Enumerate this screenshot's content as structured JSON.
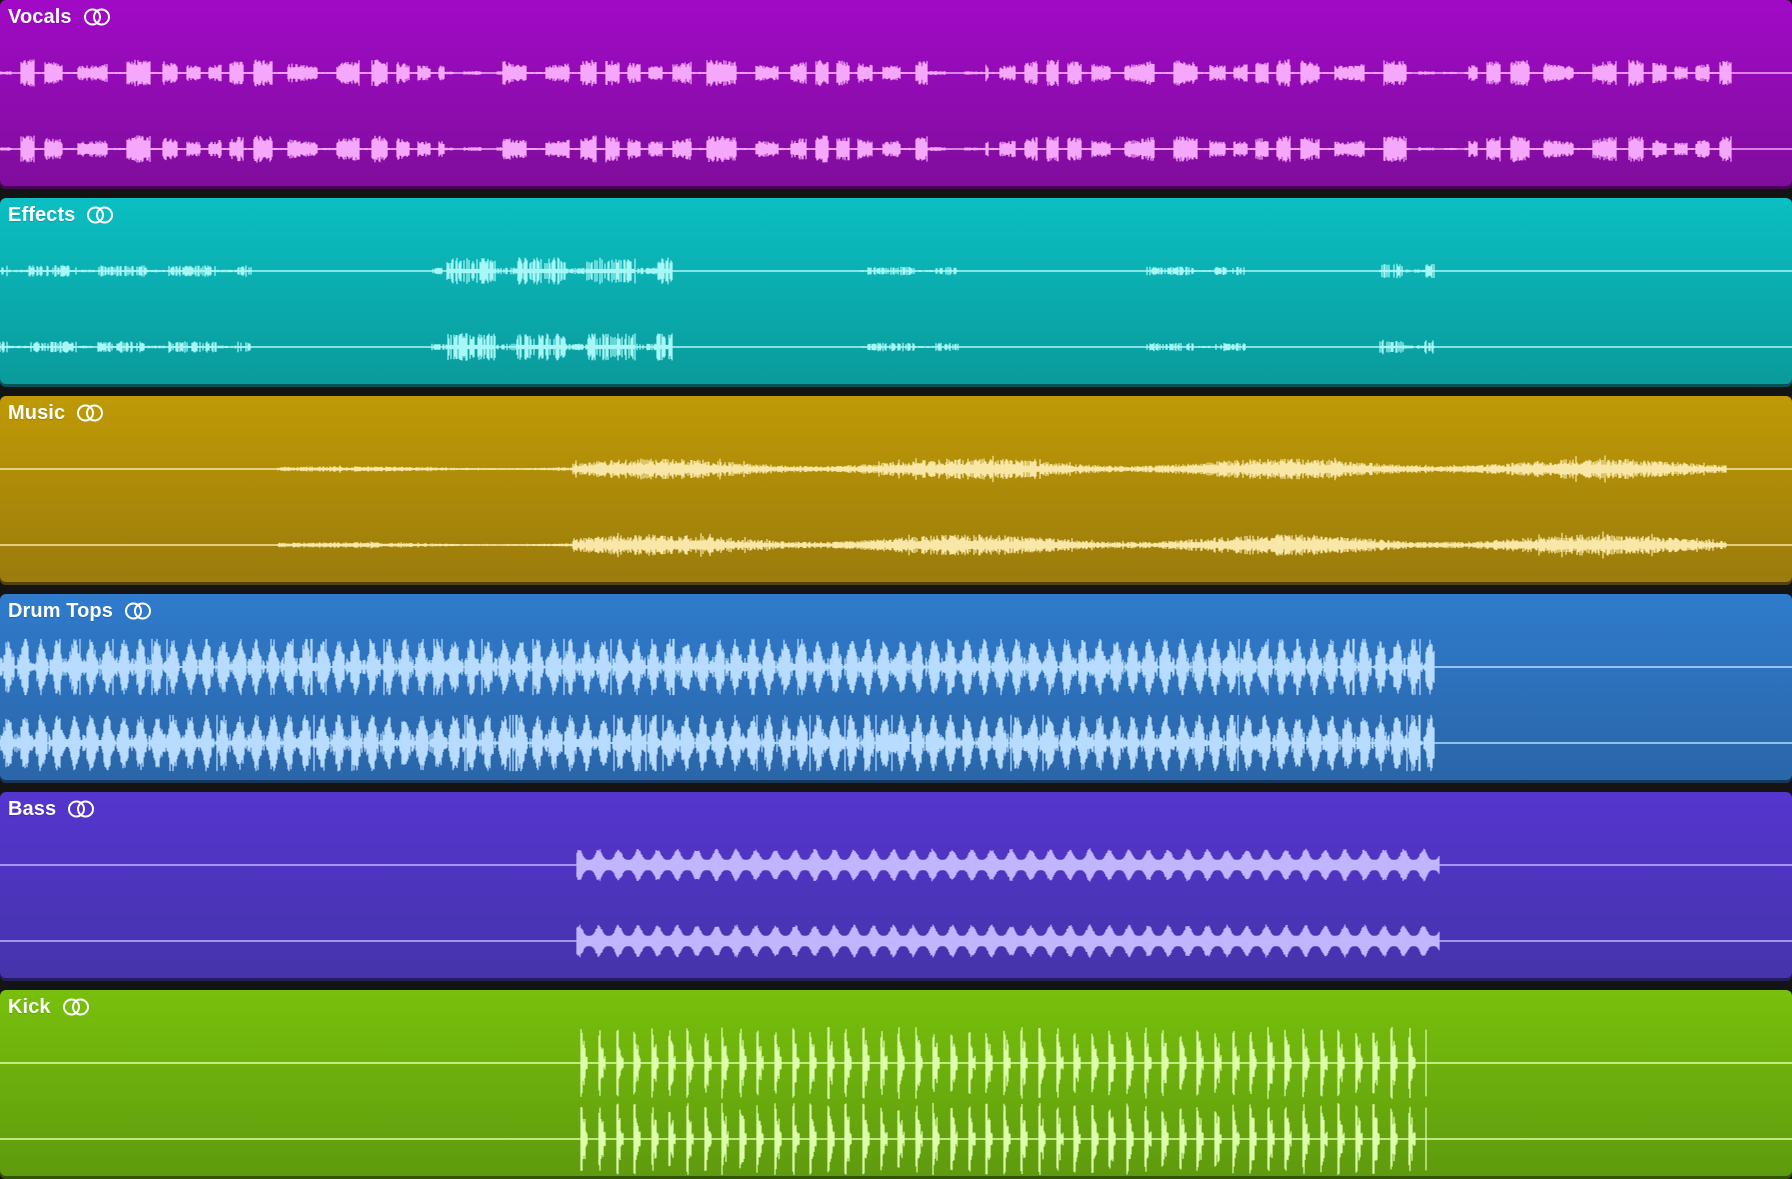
{
  "tracks": [
    {
      "name": "Vocals",
      "icon": "loop-icon",
      "colors": {
        "top": "#a10ac6",
        "bottom": "#7f0d9c",
        "wave": "#f5a8fb"
      },
      "regions": [
        {
          "start": 0.0,
          "end": 0.966,
          "amp": 0.38,
          "style": "phrase",
          "seed": 11
        }
      ]
    },
    {
      "name": "Effects",
      "icon": "loop-icon",
      "colors": {
        "top": "#0bbfc2",
        "bottom": "#0a9a9b",
        "wave": "#a7f7f7"
      },
      "regions": [
        {
          "start": 0.0,
          "end": 0.14,
          "amp": 0.16,
          "style": "sparse",
          "seed": 21
        },
        {
          "start": 0.24,
          "end": 0.375,
          "amp": 0.38,
          "style": "sparse",
          "seed": 22
        },
        {
          "start": 0.48,
          "end": 0.535,
          "amp": 0.12,
          "style": "sparse",
          "seed": 23
        },
        {
          "start": 0.64,
          "end": 0.695,
          "amp": 0.12,
          "style": "sparse",
          "seed": 24
        },
        {
          "start": 0.77,
          "end": 0.8,
          "amp": 0.2,
          "style": "sparse",
          "seed": 25
        }
      ]
    },
    {
      "name": "Music",
      "icon": "loop-icon",
      "colors": {
        "top": "#bf9a06",
        "bottom": "#9a7b0c",
        "wave": "#f8e7a6"
      },
      "regions": [
        {
          "start": 0.155,
          "end": 0.32,
          "amp": 0.08,
          "style": "dense",
          "seed": 31
        },
        {
          "start": 0.32,
          "end": 0.963,
          "amp": 0.3,
          "style": "dense",
          "seed": 32
        }
      ]
    },
    {
      "name": "Drum Tops",
      "icon": "loop-icon",
      "colors": {
        "top": "#2f7bcc",
        "bottom": "#2a65a8",
        "wave": "#b8dcff"
      },
      "regions": [
        {
          "start": 0.0,
          "end": 0.8,
          "amp": 0.78,
          "style": "drums",
          "seed": 41
        }
      ]
    },
    {
      "name": "Bass",
      "icon": "loop-icon",
      "colors": {
        "top": "#5535cf",
        "bottom": "#4534aa",
        "wave": "#c1b5ff"
      },
      "regions": [
        {
          "start": 0.322,
          "end": 0.803,
          "amp": 0.42,
          "style": "bass",
          "seed": 51
        }
      ]
    },
    {
      "name": "Kick",
      "icon": "loop-icon",
      "colors": {
        "top": "#78c00c",
        "bottom": "#5e9a0e",
        "wave": "#dcffaa"
      },
      "regions": [
        {
          "start": 0.319,
          "end": 0.796,
          "amp": 1.0,
          "style": "kick",
          "seed": 61
        }
      ]
    }
  ]
}
